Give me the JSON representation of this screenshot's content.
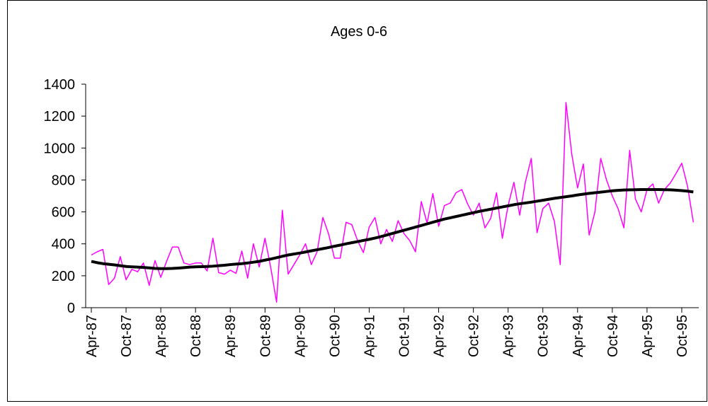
{
  "chart_data": {
    "type": "line",
    "title": "Ages 0-6",
    "categories": [
      "Apr-87",
      null,
      null,
      null,
      null,
      null,
      "Oct-87",
      null,
      null,
      null,
      null,
      null,
      "Apr-88",
      null,
      null,
      null,
      null,
      null,
      "Oct-88",
      null,
      null,
      null,
      null,
      null,
      "Apr-89",
      null,
      null,
      null,
      null,
      null,
      "Oct-89",
      null,
      null,
      null,
      null,
      null,
      "Apr-90",
      null,
      null,
      null,
      null,
      null,
      "Oct-90",
      null,
      null,
      null,
      null,
      null,
      "Apr-91",
      null,
      null,
      null,
      null,
      null,
      "Oct-91",
      null,
      null,
      null,
      null,
      null,
      "Apr-92",
      null,
      null,
      null,
      null,
      null,
      "Oct-92",
      null,
      null,
      null,
      null,
      null,
      "Apr-93",
      null,
      null,
      null,
      null,
      null,
      "Oct-93",
      null,
      null,
      null,
      null,
      null,
      "Apr-94",
      null,
      null,
      null,
      null,
      null,
      "Oct-94",
      null,
      null,
      null,
      null,
      null,
      "Apr-95",
      null,
      null,
      null,
      null,
      null,
      "Oct-95",
      null,
      null
    ],
    "series": [
      {
        "color": "#ff00ff",
        "values": [
          330,
          350,
          365,
          145,
          185,
          320,
          175,
          240,
          225,
          280,
          140,
          295,
          190,
          290,
          380,
          380,
          280,
          270,
          280,
          280,
          230,
          435,
          220,
          210,
          235,
          215,
          355,
          185,
          400,
          255,
          435,
          250,
          35,
          610,
          210,
          270,
          330,
          400,
          270,
          350,
          565,
          460,
          310,
          310,
          535,
          520,
          420,
          345,
          505,
          565,
          400,
          490,
          415,
          545,
          465,
          420,
          350,
          665,
          530,
          715,
          510,
          640,
          655,
          720,
          740,
          650,
          580,
          655,
          500,
          560,
          720,
          435,
          640,
          785,
          580,
          790,
          935,
          470,
          620,
          655,
          540,
          270,
          1285,
          960,
          750,
          900,
          455,
          600,
          935,
          800,
          700,
          620,
          500,
          985,
          680,
          600,
          740,
          775,
          655,
          740,
          780,
          840,
          905,
          760,
          535
        ]
      },
      {
        "color": "#000000",
        "values": [
          290,
          282,
          276,
          272,
          268,
          263,
          258,
          256,
          254,
          252,
          249,
          246,
          245,
          245,
          246,
          248,
          251,
          254,
          256,
          257,
          258,
          260,
          263,
          266,
          270,
          273,
          276,
          280,
          285,
          290,
          298,
          305,
          313,
          322,
          330,
          336,
          342,
          349,
          356,
          363,
          370,
          377,
          385,
          392,
          400,
          407,
          414,
          421,
          428,
          436,
          445,
          455,
          465,
          475,
          485,
          495,
          505,
          515,
          525,
          535,
          545,
          555,
          563,
          571,
          579,
          587,
          595,
          603,
          610,
          617,
          624,
          631,
          638,
          645,
          651,
          656,
          661,
          667,
          673,
          679,
          685,
          690,
          695,
          700,
          706,
          711,
          716,
          720,
          724,
          728,
          732,
          735,
          737,
          738,
          739,
          740,
          740,
          740,
          740,
          739,
          738,
          736,
          733,
          730,
          725
        ]
      }
    ],
    "ylim": [
      0,
      1400
    ],
    "yticks": [
      0,
      200,
      400,
      600,
      800,
      1000,
      1200,
      1400
    ]
  }
}
